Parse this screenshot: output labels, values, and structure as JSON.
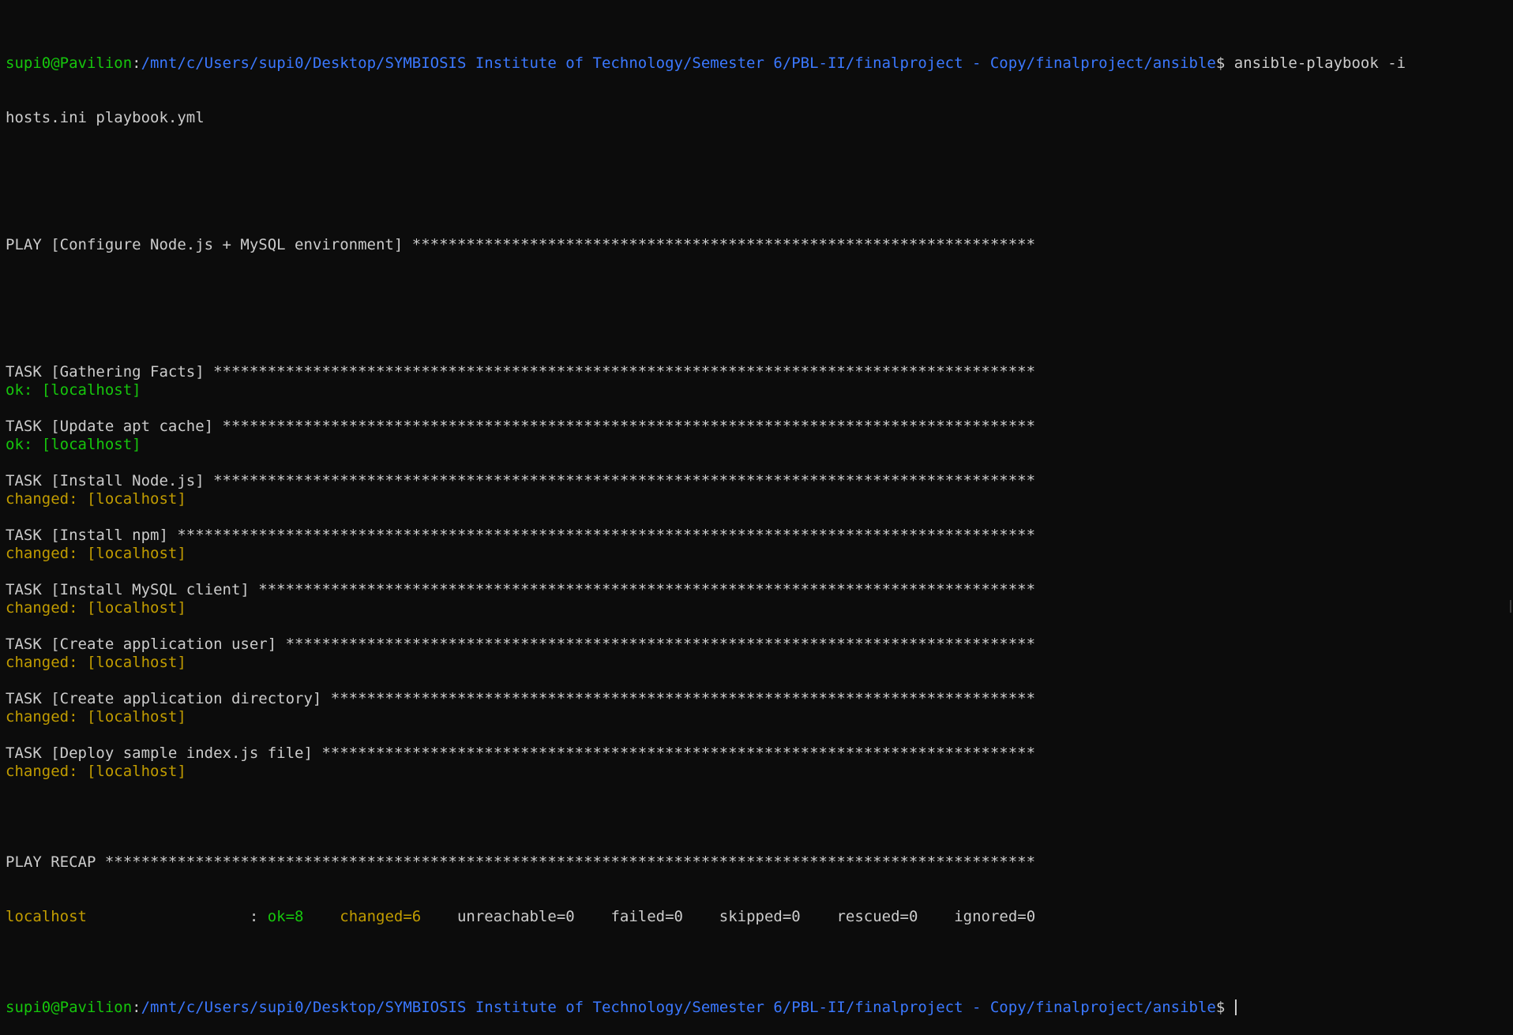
{
  "colors": {
    "background": "#0c0c0c",
    "text": "#cccccc",
    "prompt_user": "#16c60c",
    "prompt_path": "#3b78ff",
    "ok": "#16c60c",
    "changed": "#c19c00"
  },
  "prompt": {
    "user_host": "supi0@Pavilion",
    "separator": ":",
    "path": "/mnt/c/Users/supi0/Desktop/SYMBIOSIS Institute of Technology/Semester 6/PBL-II/finalproject - Copy/finalproject/ansible",
    "symbol": "$ "
  },
  "command": {
    "line1": "ansible-playbook -i",
    "line2": "hosts.ini playbook.yml"
  },
  "play_header": "PLAY [Configure Node.js + MySQL environment] *********************************************************************",
  "tasks": [
    {
      "header": "TASK [Gathering Facts] *******************************************************************************************",
      "status": "ok: [localhost]",
      "kind": "ok"
    },
    {
      "header": "TASK [Update apt cache] ******************************************************************************************",
      "status": "ok: [localhost]",
      "kind": "ok"
    },
    {
      "header": "TASK [Install Node.js] *******************************************************************************************",
      "status": "changed: [localhost]",
      "kind": "changed"
    },
    {
      "header": "TASK [Install npm] ***********************************************************************************************",
      "status": "changed: [localhost]",
      "kind": "changed"
    },
    {
      "header": "TASK [Install MySQL client] **************************************************************************************",
      "status": "changed: [localhost]",
      "kind": "changed"
    },
    {
      "header": "TASK [Create application user] ***********************************************************************************",
      "status": "changed: [localhost]",
      "kind": "changed"
    },
    {
      "header": "TASK [Create application directory] ******************************************************************************",
      "status": "changed: [localhost]",
      "kind": "changed"
    },
    {
      "header": "TASK [Deploy sample index.js file] *******************************************************************************",
      "status": "changed: [localhost]",
      "kind": "changed"
    }
  ],
  "recap": {
    "header": "PLAY RECAP *******************************************************************************************************",
    "host": "localhost",
    "host_padding": "                  : ",
    "ok": "ok=8",
    "changed": "changed=6",
    "unreachable": "unreachable=0",
    "failed": "failed=0",
    "skipped": "skipped=0",
    "rescued": "rescued=0",
    "ignored": "ignored=0",
    "gap": "    "
  }
}
